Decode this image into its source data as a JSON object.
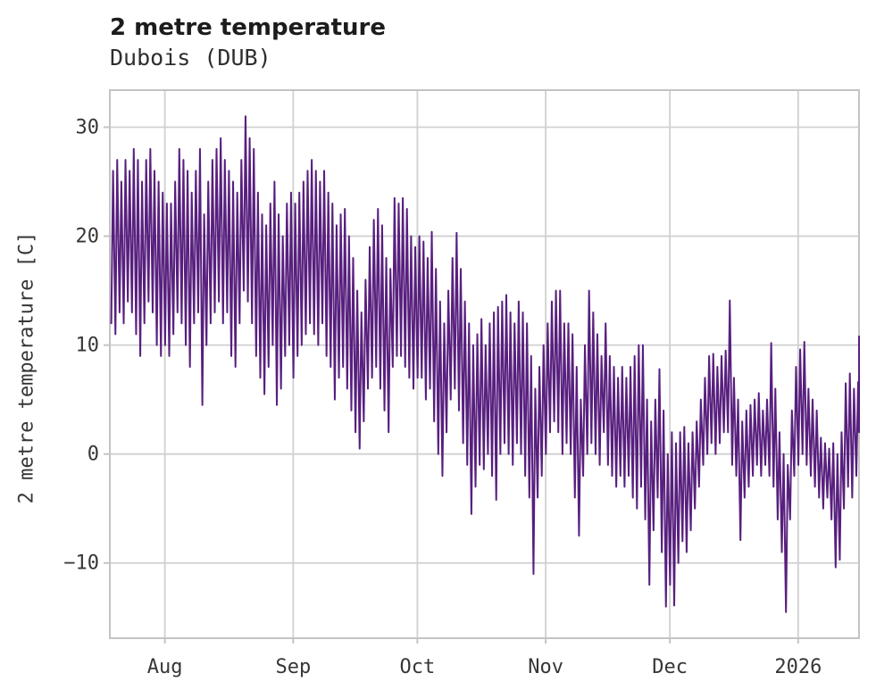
{
  "header": {
    "title": "2 metre temperature",
    "subtitle": "Dubois (DUB)"
  },
  "colors": {
    "line": "#581f7e",
    "grid": "#d0d0d0",
    "panel_border": "#c4c4c4",
    "tick_mark": "#c4c4c4",
    "title_text": "#1c1c1c",
    "tick_text": "#363636",
    "background": "#ffffff"
  },
  "chart_data": {
    "type": "line",
    "title": "2 metre temperature",
    "subtitle": "Dubois (DUB)",
    "xlabel": "",
    "ylabel": "2 metre temperature [C]",
    "legend": false,
    "grid": true,
    "line_color": "#581f7e",
    "ylim": [
      -16.9,
      33.4
    ],
    "y_ticks": {
      "values": [
        30,
        20,
        10,
        0,
        -10
      ],
      "labels": [
        "30",
        "20",
        "10",
        "0",
        "−10"
      ]
    },
    "x_ticks": {
      "labels": [
        "Aug",
        "Sep",
        "Oct",
        "Nov",
        "Dec",
        "2026"
      ],
      "day_offsets": [
        13.3,
        44.3,
        74.3,
        105.3,
        135.3,
        166.3
      ]
    },
    "x_domain_days": 181,
    "series": {
      "name": "2 metre temperature",
      "start_date": "2025-07-18",
      "end_date": "2026-01-15",
      "note": "hourly trace approximated by daily min/max envelope read from plot",
      "tmin": [
        12,
        11,
        13,
        12,
        14,
        13,
        11,
        9,
        12,
        14,
        13,
        10,
        9,
        10,
        9,
        11,
        13,
        12,
        10,
        8,
        12,
        13,
        4.5,
        10,
        12,
        13,
        14,
        12,
        13,
        9,
        8,
        12,
        15,
        14,
        12,
        9,
        7,
        5.5,
        8,
        10,
        4.5,
        6,
        9,
        10,
        7,
        9,
        10,
        11,
        12,
        11,
        10,
        12,
        9,
        8,
        5,
        7,
        8,
        6,
        4,
        2,
        0.5,
        3,
        6,
        7,
        8,
        6,
        4,
        2,
        8,
        9,
        9,
        8,
        7,
        6,
        7,
        7,
        5,
        6,
        3,
        0,
        -2,
        2,
        5,
        6,
        4,
        1,
        -1,
        -5.5,
        -3,
        -1,
        -1.4,
        0,
        -2,
        -4.2,
        0,
        1,
        0,
        -1,
        1,
        0,
        -2,
        -4,
        -11,
        -4,
        -2,
        0,
        2,
        3,
        2,
        0,
        1,
        0,
        -4,
        -7.5,
        -2,
        0,
        1,
        0,
        -1,
        2,
        -1,
        -2,
        -3,
        -2,
        -3,
        -2,
        -4,
        -5,
        -3,
        -6,
        -12,
        -7,
        -4,
        -9,
        -14,
        -12,
        -13.9,
        -10,
        -8,
        -9,
        -7,
        -5,
        -3,
        -1,
        0,
        1,
        0,
        1,
        2,
        2,
        -1,
        -2,
        -7.9,
        -4,
        -3,
        -2,
        -1,
        -2,
        -1,
        -2,
        -3,
        -6,
        -9,
        -14.5,
        -6,
        -2,
        -1,
        0,
        -1,
        -2,
        -3,
        -4,
        -5,
        -4,
        -6,
        -10.4,
        -9.7,
        -5,
        -3,
        -4,
        -2,
        2
      ],
      "tmax": [
        26,
        27,
        25,
        27,
        26,
        28,
        27,
        25,
        27,
        28,
        26,
        25,
        24,
        23,
        23,
        25,
        28,
        27,
        26,
        24,
        26,
        28,
        22,
        25,
        27,
        28,
        29,
        27,
        26,
        25,
        24,
        27,
        31,
        29,
        28,
        24,
        22,
        21,
        23,
        25,
        22,
        20,
        23,
        24,
        23,
        24,
        25,
        26,
        27,
        26,
        25,
        26,
        24,
        23,
        21,
        22,
        22.5,
        20,
        18,
        15,
        13,
        16,
        19,
        21.5,
        22.5,
        21,
        18,
        17,
        23.5,
        23,
        23.5,
        22.5,
        20,
        19,
        20,
        19.5,
        18,
        20.4,
        17,
        14,
        12,
        15,
        18,
        20.3,
        17,
        14,
        12,
        10,
        11,
        12.4,
        10,
        12,
        13,
        13.5,
        14,
        14.6,
        13,
        12,
        14,
        13,
        12,
        9,
        6,
        8,
        10,
        12,
        14,
        15,
        15,
        12,
        12,
        11,
        8,
        5,
        10,
        15,
        13,
        11,
        9,
        12,
        9,
        8,
        7,
        8,
        7,
        8,
        9,
        10,
        10,
        5,
        3,
        5,
        7.8,
        4,
        0,
        2,
        1,
        2,
        2.5,
        1,
        2,
        3,
        5,
        7,
        9,
        9.2,
        8,
        9,
        9.5,
        14.1,
        7,
        5,
        3,
        4,
        4.5,
        5,
        5.6,
        4,
        5,
        10.2,
        6,
        2,
        0,
        -1,
        4,
        8,
        9.6,
        10.3,
        6,
        5,
        4,
        1.5,
        1,
        0.5,
        1,
        0,
        2,
        6.5,
        7.4,
        6,
        6.6,
        10.8
      ]
    }
  }
}
